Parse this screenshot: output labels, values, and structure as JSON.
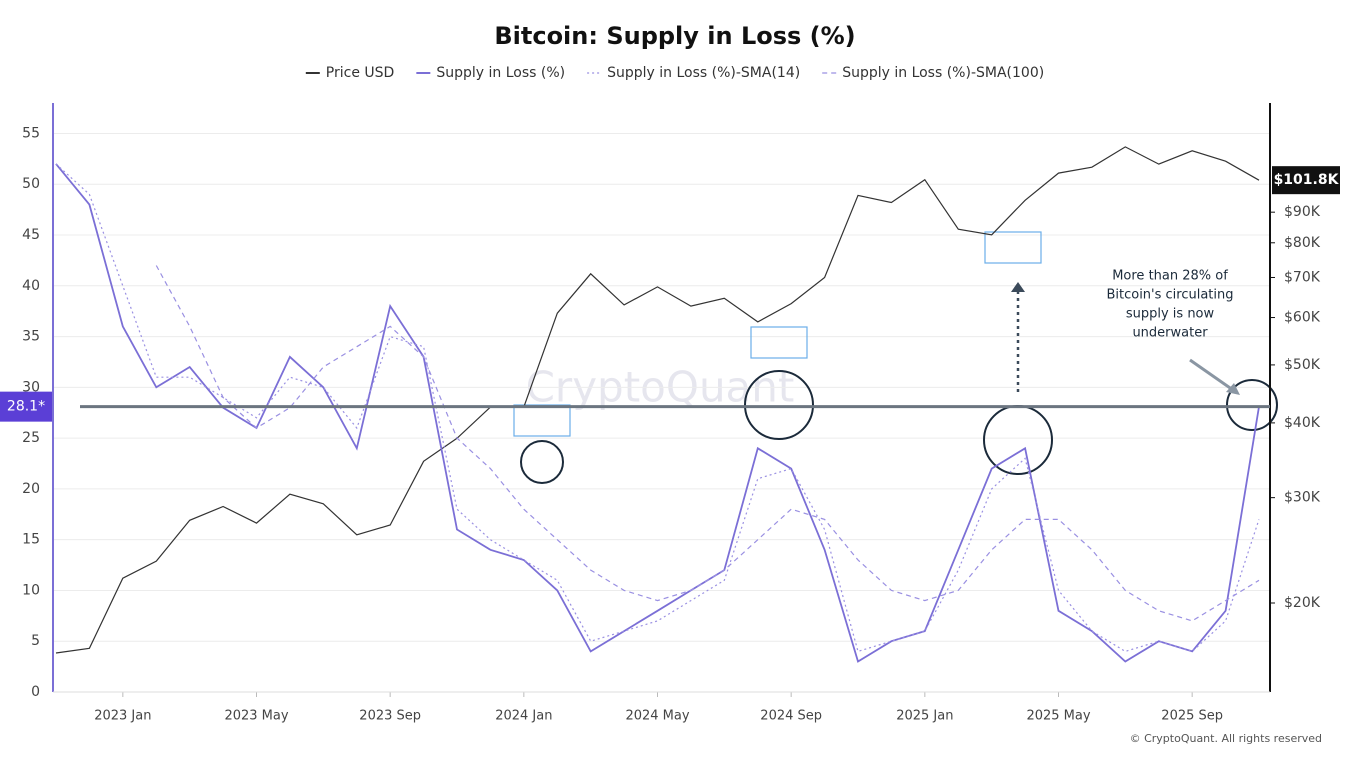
{
  "chart_data": {
    "type": "line",
    "title": "Bitcoin: Supply in Loss (%)",
    "x": [
      "2022-11",
      "2022-12",
      "2023-01",
      "2023-02",
      "2023-03",
      "2023-04",
      "2023-05",
      "2023-06",
      "2023-07",
      "2023-08",
      "2023-09",
      "2023-10",
      "2023-11",
      "2023-12",
      "2024-01",
      "2024-02",
      "2024-03",
      "2024-04",
      "2024-05",
      "2024-06",
      "2024-07",
      "2024-08",
      "2024-09",
      "2024-10",
      "2024-11",
      "2024-12",
      "2025-01",
      "2025-02",
      "2025-03",
      "2025-04",
      "2025-05",
      "2025-06",
      "2025-07",
      "2025-08",
      "2025-09",
      "2025-10",
      "2025-11"
    ],
    "xlim": [
      "2022-11",
      "2025-11"
    ],
    "xticks": [
      {
        "value": "2023-01",
        "label": "2023 Jan"
      },
      {
        "value": "2023-05",
        "label": "2023 May"
      },
      {
        "value": "2023-09",
        "label": "2023 Sep"
      },
      {
        "value": "2024-01",
        "label": "2024 Jan"
      },
      {
        "value": "2024-05",
        "label": "2024 May"
      },
      {
        "value": "2024-09",
        "label": "2024 Sep"
      },
      {
        "value": "2025-01",
        "label": "2025 Jan"
      },
      {
        "value": "2025-05",
        "label": "2025 May"
      },
      {
        "value": "2025-09",
        "label": "2025 Sep"
      }
    ],
    "ylim": [
      0,
      58
    ],
    "yticks": [
      0,
      5,
      10,
      15,
      20,
      25,
      30,
      35,
      40,
      45,
      50,
      55
    ],
    "y2lim": [
      14200,
      137000
    ],
    "y2_log": true,
    "y2ticks": [
      {
        "value": 20000,
        "label": "$20K"
      },
      {
        "value": 30000,
        "label": "$30K"
      },
      {
        "value": 40000,
        "label": "$40K"
      },
      {
        "value": 50000,
        "label": "$50K"
      },
      {
        "value": 60000,
        "label": "$60K"
      },
      {
        "value": 70000,
        "label": "$70K"
      },
      {
        "value": 80000,
        "label": "$80K"
      },
      {
        "value": 90000,
        "label": "$90K"
      }
    ],
    "grid": true,
    "series": [
      {
        "name": "Price USD",
        "color": "#333333",
        "axis": "y2",
        "style": "solid",
        "values": [
          16500,
          16800,
          22000,
          23500,
          27500,
          29000,
          27200,
          30400,
          29300,
          26000,
          27000,
          34500,
          37700,
          42500,
          42500,
          61000,
          71000,
          63000,
          67500,
          62700,
          64600,
          59000,
          63300,
          70000,
          96000,
          93400,
          102000,
          84300,
          82500,
          94200,
          104600,
          107000,
          115700,
          108300,
          114000,
          109500,
          101800
        ]
      },
      {
        "name": "Supply in Loss (%)",
        "color": "#7b6fd6",
        "style": "solid",
        "values": [
          52,
          48,
          36,
          30,
          32,
          28,
          26,
          33,
          30,
          24,
          38,
          33,
          16,
          14,
          13,
          10,
          4,
          6,
          8,
          10,
          12,
          24,
          22,
          14,
          3,
          5,
          6,
          14,
          22,
          24,
          8,
          6,
          3,
          5,
          4,
          8,
          28.1
        ]
      },
      {
        "name": "Supply in Loss (%)-SMA(14)",
        "color": "#9a90e2",
        "style": "dotted",
        "values": [
          52,
          49,
          40,
          31,
          31,
          29,
          27,
          31,
          30,
          26,
          35,
          34,
          18,
          15,
          13,
          11,
          5,
          6,
          7,
          9,
          11,
          21,
          22,
          16,
          4,
          5,
          6,
          12,
          20,
          23,
          10,
          6,
          4,
          5,
          4,
          7,
          17
        ]
      },
      {
        "name": "Supply in Loss (%)-SMA(100)",
        "color": "#9a90e2",
        "style": "dashed",
        "values": [
          null,
          null,
          null,
          42,
          36,
          29,
          26,
          28,
          32,
          34,
          36,
          33,
          25,
          22,
          18,
          15,
          12,
          10,
          9,
          10,
          12,
          15,
          18,
          17,
          13,
          10,
          9,
          10,
          14,
          17,
          17,
          14,
          10,
          8,
          7,
          9,
          11
        ]
      }
    ],
    "reference_line": {
      "value": 28.1,
      "label": "28.1*"
    },
    "current_price": {
      "value": 101800,
      "label": "$101.8K"
    },
    "annotation": [
      "More than 28% of",
      "Bitcoin's circulating",
      "supply is now",
      "underwater"
    ],
    "watermark": "CryptoQuant",
    "footer": "© CryptoQuant. All rights reserved"
  }
}
